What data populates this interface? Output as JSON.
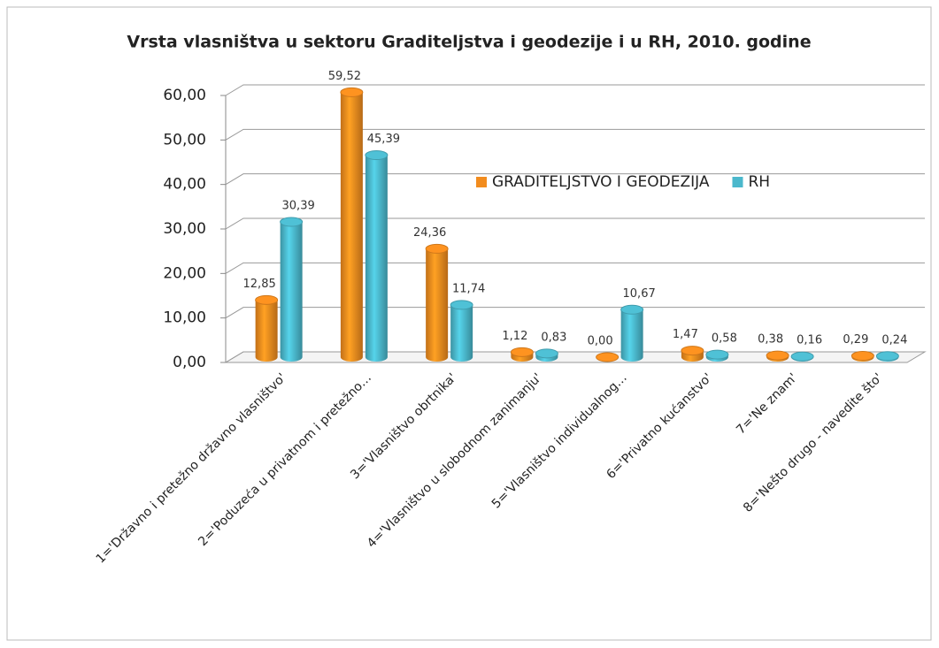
{
  "chart_data": {
    "type": "bar3d",
    "title": "Vrsta vlasništva u sektoru Graditeljstva i geodezije i u RH, 2010. godine",
    "categories": [
      "1='Državno i pretežno državno vlasništvo'",
      "2='Poduzeća u privatnom i pretežno…",
      "3='Vlasništvo obrtnika'",
      "4='Vlasništvo u slobodnom zanimanju'",
      "5='Vlasništvo individualnog…",
      "6='Privatno kućanstvo'",
      "7='Ne znam'",
      "8='Nešto drugo - navedite što'"
    ],
    "series": [
      {
        "name": "GRADITELJSTVO I GEODEZIJA",
        "color": "#f28c1e",
        "values": [
          12.85,
          59.52,
          24.36,
          1.12,
          0,
          1.47,
          0.38,
          0.29
        ],
        "value_labels": [
          "12,85",
          "59,52",
          "24,36",
          "1,12",
          "0,00",
          "1,47",
          "0,38",
          "0,29"
        ]
      },
      {
        "name": "RH",
        "color": "#4bb8cc",
        "values": [
          30.39,
          45.39,
          11.74,
          0.83,
          10.67,
          0.58,
          0.16,
          0.24
        ],
        "value_labels": [
          "30,39",
          "45,39",
          "11,74",
          "0,83",
          "10,67",
          "0,58",
          "0,16",
          "0,24"
        ]
      }
    ],
    "ylim": [
      0,
      60
    ],
    "yticks": [
      {
        "value": 0,
        "label": "0,00"
      },
      {
        "value": 10,
        "label": "10,00"
      },
      {
        "value": 20,
        "label": "20,00"
      },
      {
        "value": 30,
        "label": "30,00"
      },
      {
        "value": 40,
        "label": "40,00"
      },
      {
        "value": 50,
        "label": "50,00"
      },
      {
        "value": 60,
        "label": "60,00"
      }
    ],
    "grid": true,
    "legend": "inside"
  }
}
